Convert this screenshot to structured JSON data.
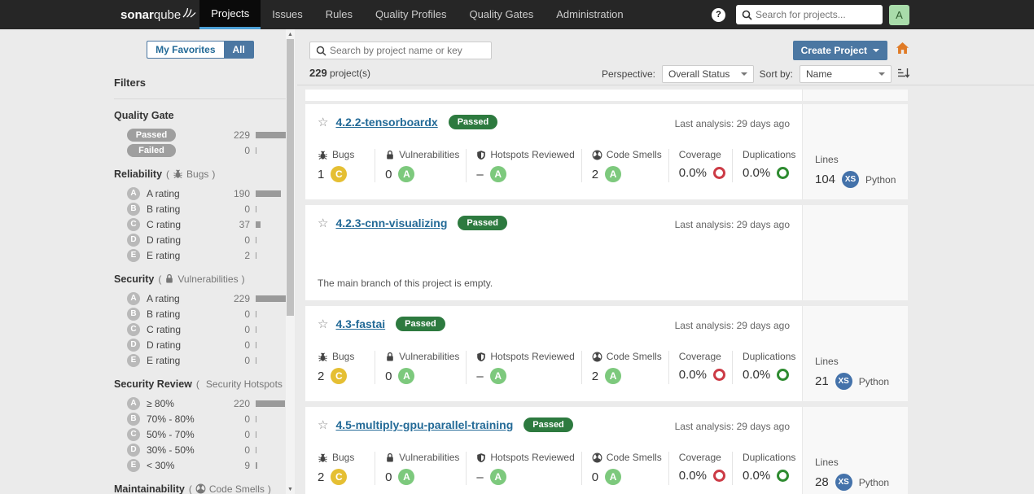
{
  "navbar": {
    "logo_bold": "sonar",
    "logo_light": "qube",
    "items": [
      {
        "label": "Projects"
      },
      {
        "label": "Issues"
      },
      {
        "label": "Rules"
      },
      {
        "label": "Quality Profiles"
      },
      {
        "label": "Quality Gates"
      },
      {
        "label": "Administration"
      }
    ],
    "help_glyph": "?",
    "search_placeholder": "Search for projects...",
    "avatar_letter": "A"
  },
  "punct": {
    "open": "(",
    "close": ")"
  },
  "icons": {
    "star": "☆",
    "scroll_up": "▲",
    "scroll_down": "▼"
  },
  "sidebar": {
    "my_favorites": "My Favorites",
    "all": "All",
    "filters_title": "Filters",
    "quality_gate": {
      "title": "Quality Gate",
      "rows": [
        {
          "label": "Passed",
          "count": "229",
          "bar": 37
        },
        {
          "label": "Failed",
          "count": "0",
          "bar": 1
        }
      ]
    },
    "reliability": {
      "title": "Reliability",
      "paren": "Bugs",
      "rows": [
        {
          "rating": "A",
          "label": "A rating",
          "count": "190",
          "bar": 31
        },
        {
          "rating": "B",
          "label": "B rating",
          "count": "0",
          "bar": 1
        },
        {
          "rating": "C",
          "label": "C rating",
          "count": "37",
          "bar": 6
        },
        {
          "rating": "D",
          "label": "D rating",
          "count": "0",
          "bar": 1
        },
        {
          "rating": "E",
          "label": "E rating",
          "count": "2",
          "bar": 1
        }
      ]
    },
    "security": {
      "title": "Security",
      "paren": "Vulnerabilities",
      "rows": [
        {
          "rating": "A",
          "label": "A rating",
          "count": "229",
          "bar": 37
        },
        {
          "rating": "B",
          "label": "B rating",
          "count": "0",
          "bar": 1
        },
        {
          "rating": "C",
          "label": "C rating",
          "count": "0",
          "bar": 1
        },
        {
          "rating": "D",
          "label": "D rating",
          "count": "0",
          "bar": 1
        },
        {
          "rating": "E",
          "label": "E rating",
          "count": "0",
          "bar": 1
        }
      ]
    },
    "security_review": {
      "title": "Security Review",
      "paren": "Security Hotspots",
      "rows": [
        {
          "rating": "A",
          "label": "≥ 80%",
          "count": "220",
          "bar": 36
        },
        {
          "rating": "B",
          "label": "70% - 80%",
          "count": "0",
          "bar": 1
        },
        {
          "rating": "C",
          "label": "50% - 70%",
          "count": "0",
          "bar": 1
        },
        {
          "rating": "D",
          "label": "30% - 50%",
          "count": "0",
          "bar": 1
        },
        {
          "rating": "E",
          "label": "< 30%",
          "count": "9",
          "bar": 2
        }
      ]
    },
    "maintainability": {
      "title": "Maintainability",
      "paren": "Code Smells"
    }
  },
  "toolbar": {
    "search_placeholder": "Search by project name or key",
    "count": "229",
    "count_suffix": " project(s)",
    "perspective_label": "Perspective:",
    "perspective_value": "Overall Status",
    "sort_label": "Sort by:",
    "sort_value": "Name",
    "create_label": "Create Project"
  },
  "metric_labels": {
    "bugs": "Bugs",
    "vulnerabilities": "Vulnerabilities",
    "hotspots": "Hotspots Reviewed",
    "code_smells": "Code Smells",
    "coverage": "Coverage",
    "duplications": "Duplications",
    "lines": "Lines"
  },
  "projects": [
    {
      "name": "4.2.2-tensorboardx",
      "status": "Passed",
      "last_analysis": "Last analysis: 29 days ago",
      "bugs": "1",
      "bugs_rating": "C",
      "vulnerabilities": "0",
      "vulnerabilities_rating": "A",
      "hotspots": "–",
      "hotspots_rating": "A",
      "code_smells": "2",
      "code_smells_rating": "A",
      "coverage": "0.0%",
      "duplications": "0.0%",
      "lines": "104",
      "size": "XS",
      "language": "Python"
    },
    {
      "name": "4.2.3-cnn-visualizing",
      "status": "Passed",
      "last_analysis": "Last analysis: 29 days ago",
      "empty_message": "The main branch of this project is empty."
    },
    {
      "name": "4.3-fastai",
      "status": "Passed",
      "last_analysis": "Last analysis: 29 days ago",
      "bugs": "2",
      "bugs_rating": "C",
      "vulnerabilities": "0",
      "vulnerabilities_rating": "A",
      "hotspots": "–",
      "hotspots_rating": "A",
      "code_smells": "2",
      "code_smells_rating": "A",
      "coverage": "0.0%",
      "duplications": "0.0%",
      "lines": "21",
      "size": "XS",
      "language": "Python"
    },
    {
      "name": "4.5-multiply-gpu-parallel-training",
      "status": "Passed",
      "last_analysis": "Last analysis: 29 days ago",
      "bugs": "2",
      "bugs_rating": "C",
      "vulnerabilities": "0",
      "vulnerabilities_rating": "A",
      "hotspots": "–",
      "hotspots_rating": "A",
      "code_smells": "0",
      "code_smells_rating": "A",
      "coverage": "0.0%",
      "duplications": "0.0%",
      "lines": "28",
      "size": "XS",
      "language": "Python"
    }
  ],
  "colors": {
    "navbar_bg": "#262626",
    "nav_active_underline": "#4b9fd5",
    "accent_blue": "#4b77a2",
    "link_blue": "#236a97",
    "passed_green": "#2d7a3f",
    "rating_a_green": "#7dc97d",
    "rating_c_yellow": "#e5bf33",
    "coverage_red": "#cc3b46",
    "duplication_green": "#2e8b30",
    "size_badge_blue": "#4472aa",
    "home_orange": "#e07b26",
    "avatar_green": "#a9dcaa"
  }
}
